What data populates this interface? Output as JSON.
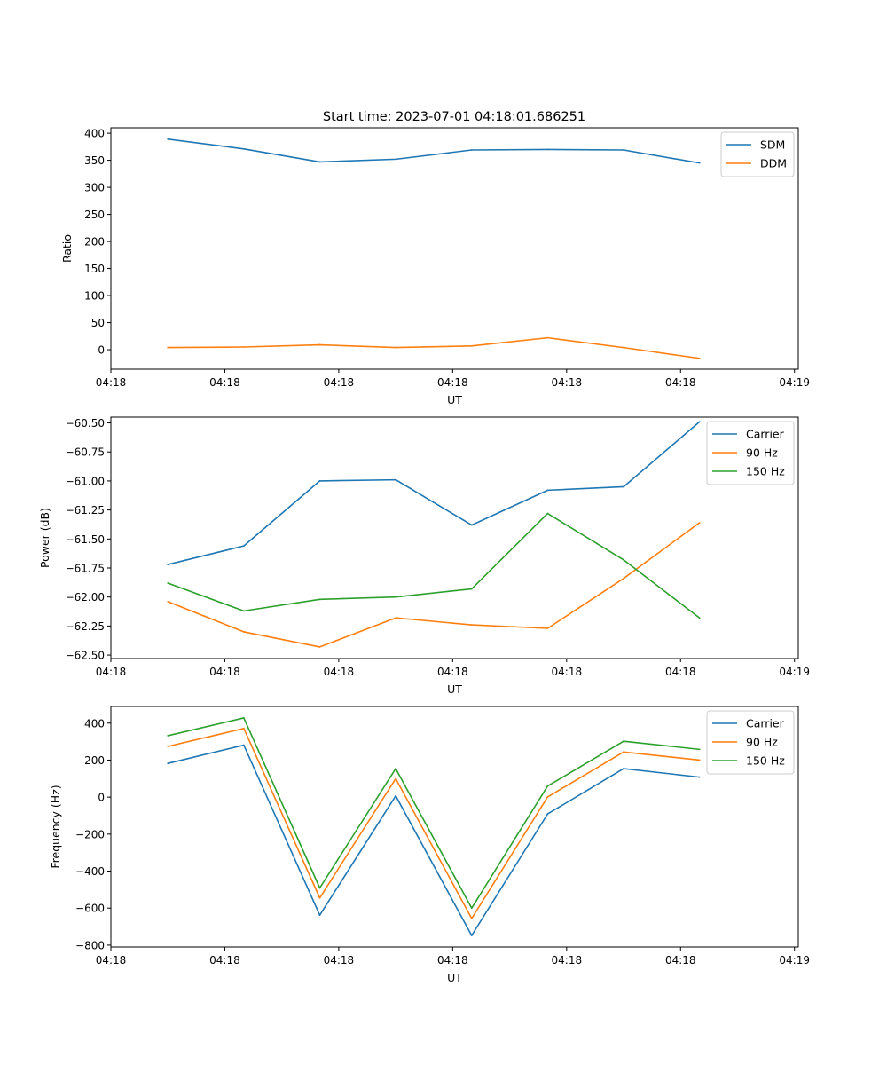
{
  "figure": {
    "title": "Start time: 2023-07-01 04:18:01.686251"
  },
  "colors": {
    "blue": "#1f77b4",
    "orange": "#ff7f0e",
    "green": "#2ca02c"
  },
  "chart_data": [
    {
      "type": "line",
      "title": "Start time: 2023-07-01 04:18:01.686251",
      "xlabel": "UT",
      "ylabel": "Ratio",
      "x": [
        1,
        2,
        3,
        4,
        5,
        6,
        7,
        8
      ],
      "xlim": [
        0.25,
        9.3
      ],
      "xticks": [
        0.25,
        1.75,
        3.25,
        4.75,
        6.25,
        7.75,
        9.25
      ],
      "xtick_labels": [
        "04:18",
        "04:18",
        "04:18",
        "04:18",
        "04:18",
        "04:18",
        "04:19"
      ],
      "ylim": [
        -36,
        410
      ],
      "yticks": [
        0,
        50,
        100,
        150,
        200,
        250,
        300,
        350,
        400
      ],
      "ytick_labels": [
        "0",
        "50",
        "100",
        "150",
        "200",
        "250",
        "300",
        "350",
        "400"
      ],
      "legend": "top-right",
      "series": [
        {
          "name": "SDM",
          "color": "blue",
          "values": [
            389,
            371,
            347,
            352,
            369,
            370,
            369,
            345
          ]
        },
        {
          "name": "DDM",
          "color": "orange",
          "values": [
            4,
            5,
            9,
            4,
            7,
            22,
            4,
            -16
          ]
        }
      ]
    },
    {
      "type": "line",
      "title": "",
      "xlabel": "UT",
      "ylabel": "Power (dB)",
      "x": [
        1,
        2,
        3,
        4,
        5,
        6,
        7,
        8
      ],
      "xlim": [
        0.25,
        9.3
      ],
      "xticks": [
        0.25,
        1.75,
        3.25,
        4.75,
        6.25,
        7.75,
        9.25
      ],
      "xtick_labels": [
        "04:18",
        "04:18",
        "04:18",
        "04:18",
        "04:18",
        "04:18",
        "04:19"
      ],
      "ylim": [
        -62.53,
        -60.45
      ],
      "yticks": [
        -62.5,
        -62.25,
        -62.0,
        -61.75,
        -61.5,
        -61.25,
        -61.0,
        -60.75,
        -60.5
      ],
      "ytick_labels": [
        "−62.50",
        "−62.25",
        "−62.00",
        "−61.75",
        "−61.50",
        "−61.25",
        "−61.00",
        "−60.75",
        "−60.50"
      ],
      "legend": "top-right",
      "series": [
        {
          "name": "Carrier",
          "color": "blue",
          "values": [
            -61.72,
            -61.56,
            -61.0,
            -60.99,
            -61.38,
            -61.08,
            -61.05,
            -60.49
          ]
        },
        {
          "name": "90 Hz",
          "color": "orange",
          "values": [
            -62.04,
            -62.3,
            -62.43,
            -62.18,
            -62.24,
            -62.27,
            -61.84,
            -61.36
          ]
        },
        {
          "name": "150 Hz",
          "color": "green",
          "values": [
            -61.88,
            -62.12,
            -62.02,
            -62.0,
            -61.93,
            -61.28,
            -61.68,
            -62.18
          ]
        }
      ]
    },
    {
      "type": "line",
      "title": "",
      "xlabel": "UT",
      "ylabel": "Frequency (Hz)",
      "x": [
        1,
        2,
        3,
        4,
        5,
        6,
        7,
        8
      ],
      "xlim": [
        0.25,
        9.3
      ],
      "xticks": [
        0.25,
        1.75,
        3.25,
        4.75,
        6.25,
        7.75,
        9.25
      ],
      "xtick_labels": [
        "04:18",
        "04:18",
        "04:18",
        "04:18",
        "04:18",
        "04:18",
        "04:19"
      ],
      "ylim": [
        -810,
        490
      ],
      "yticks": [
        -800,
        -600,
        -400,
        -200,
        0,
        200,
        400
      ],
      "ytick_labels": [
        "−800",
        "−600",
        "−400",
        "−200",
        "0",
        "200",
        "400"
      ],
      "legend": "top-right",
      "series": [
        {
          "name": "Carrier",
          "color": "blue",
          "values": [
            182,
            281,
            -638,
            7,
            -748,
            -91,
            154,
            108
          ]
        },
        {
          "name": "90 Hz",
          "color": "orange",
          "values": [
            274,
            371,
            -545,
            100,
            -656,
            1,
            244,
            200
          ]
        },
        {
          "name": "150 Hz",
          "color": "green",
          "values": [
            332,
            428,
            -491,
            154,
            -600,
            60,
            302,
            258
          ]
        }
      ]
    }
  ]
}
